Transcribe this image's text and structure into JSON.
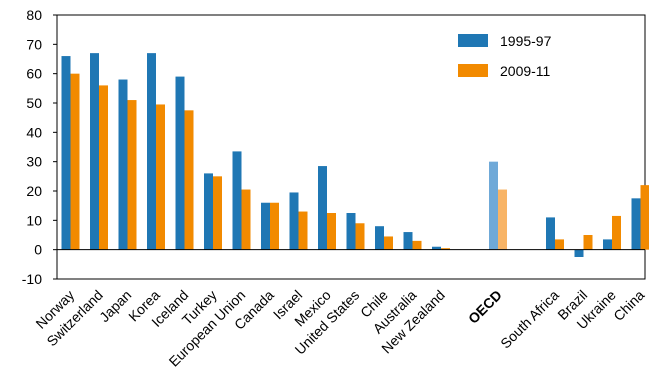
{
  "chart_data": {
    "type": "bar",
    "title": "",
    "xlabel": "",
    "ylabel": "",
    "ylim": [
      -10,
      80
    ],
    "yticks": [
      -10,
      0,
      10,
      20,
      30,
      40,
      50,
      60,
      70,
      80
    ],
    "grid": false,
    "legend_position": "top-right",
    "categories": [
      "Norway",
      "Switzerland",
      "Japan",
      "Korea",
      "Iceland",
      "Turkey",
      "European Union",
      "Canada",
      "Israel",
      "Mexico",
      "United States",
      "Chile",
      "Australia",
      "New Zealand",
      "",
      "OECD",
      "",
      "South Africa",
      "Brazil",
      "Ukraine",
      "China"
    ],
    "highlight_category": "OECD",
    "series": [
      {
        "name": "1995-97",
        "color": "#1f77b4",
        "highlight_color": "#6fa9d8",
        "values": [
          66,
          67,
          58,
          67,
          59,
          26,
          33.5,
          16,
          19.5,
          28.5,
          12.5,
          8,
          6,
          1,
          null,
          30,
          null,
          11,
          -2.5,
          3.5,
          17.5
        ]
      },
      {
        "name": "2009-11",
        "color": "#f28a00",
        "highlight_color": "#f8b466",
        "values": [
          60,
          56,
          51,
          49.5,
          47.5,
          25,
          20.5,
          16,
          13,
          12.5,
          9,
          4.5,
          3,
          0.5,
          null,
          20.5,
          null,
          3.5,
          5,
          11.5,
          22
        ]
      }
    ]
  }
}
